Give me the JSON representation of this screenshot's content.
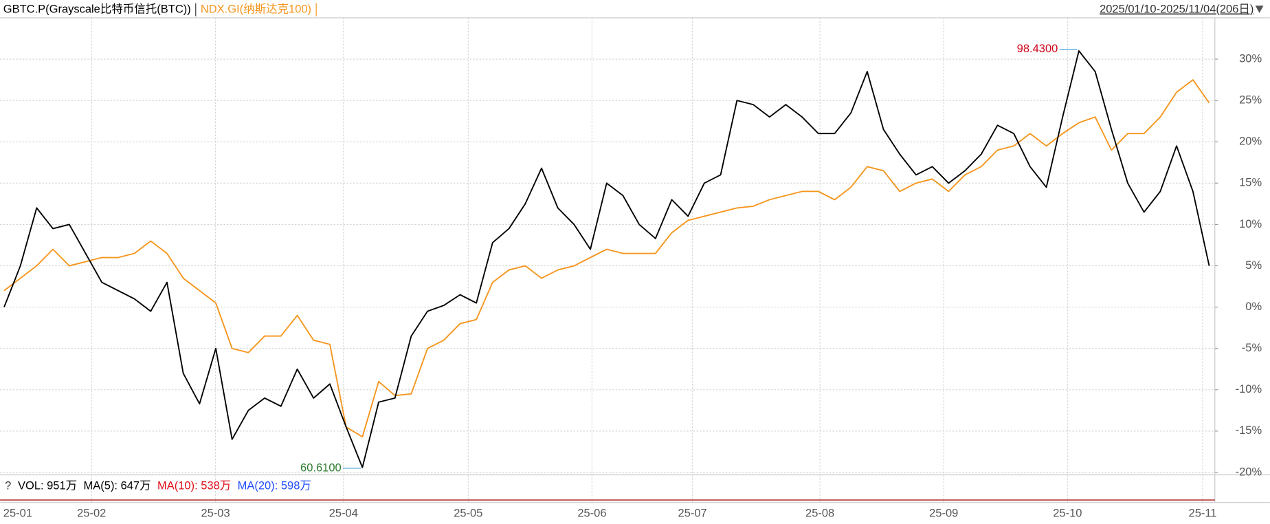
{
  "chart_data": {
    "type": "line",
    "range_label": "2025/01/10-2025/11/04(206日)",
    "series": [
      {
        "name": "GBTC.P(Grayscale比特币信托(BTC))",
        "color": "#000000",
        "values": [
          0,
          5,
          12,
          9.5,
          10,
          6.5,
          3,
          2,
          1,
          -0.5,
          3,
          -8,
          -11.7,
          -5,
          -16,
          -12.5,
          -11,
          -12,
          -7.5,
          -11,
          -9.3,
          -14.5,
          -19.4,
          -11.5,
          -11,
          -3.5,
          -0.5,
          0.2,
          1.5,
          0.5,
          7.8,
          9.5,
          12.5,
          16.8,
          12,
          10,
          7,
          15,
          13.5,
          10,
          8.3,
          13,
          11,
          15,
          16,
          25,
          24.5,
          23,
          24.5,
          23,
          21,
          21,
          23.5,
          28.5,
          21.5,
          18.5,
          16,
          17,
          15,
          16.5,
          18.5,
          22,
          21,
          17,
          14.5,
          23,
          31,
          28.5,
          21.5,
          15,
          11.5,
          14,
          19.5,
          14,
          5
        ]
      },
      {
        "name": "NDX.GI(纳斯达克100)",
        "color": "#f5961e",
        "values": [
          2,
          3.5,
          5,
          7,
          5,
          5.5,
          6,
          6,
          6.5,
          8,
          6.5,
          3.5,
          2,
          0.5,
          -5,
          -5.5,
          -3.5,
          -3.5,
          -1,
          -4,
          -4.5,
          -14.5,
          -15.7,
          -9,
          -10.7,
          -10.5,
          -5,
          -4,
          -2,
          -1.5,
          3,
          4.5,
          5,
          3.5,
          4.5,
          5,
          6,
          7,
          6.5,
          6.5,
          6.5,
          9,
          10.5,
          11,
          11.5,
          12,
          12.2,
          13,
          13.5,
          14,
          14,
          13,
          14.5,
          17,
          16.5,
          14,
          15,
          15.5,
          14,
          16,
          17,
          19,
          19.5,
          21,
          19.5,
          21,
          22.3,
          23,
          19,
          21,
          21,
          23,
          26,
          27.5,
          24.7
        ]
      }
    ],
    "annotations": {
      "max": "98.4300",
      "min": "60.6100",
      "max_color": "#d0021b",
      "min_color": "#2e7d32"
    },
    "xlim": [
      -0.25,
      74.35
    ],
    "xticks": [
      {
        "value": 0,
        "label": "25-01"
      },
      {
        "value": 5.37,
        "label": "25-02"
      },
      {
        "value": 12.98,
        "label": "25-03"
      },
      {
        "value": 20.84,
        "label": "25-04"
      },
      {
        "value": 28.5,
        "label": "25-05"
      },
      {
        "value": 36.1,
        "label": "25-06"
      },
      {
        "value": 42.27,
        "label": "25-07"
      },
      {
        "value": 50.1,
        "label": "25-08"
      },
      {
        "value": 57.7,
        "label": "25-09"
      },
      {
        "value": 65.3,
        "label": "25-10"
      },
      {
        "value": 73.6,
        "label": "25-11"
      }
    ],
    "ylim": [
      -20.3,
      35
    ],
    "yticks": [
      {
        "value": 30,
        "label": "30%"
      },
      {
        "value": 25,
        "label": "25%"
      },
      {
        "value": 20,
        "label": "20%"
      },
      {
        "value": 15,
        "label": "15%"
      },
      {
        "value": 10,
        "label": "10%"
      },
      {
        "value": 5,
        "label": "5%"
      },
      {
        "value": 0,
        "label": "0%"
      },
      {
        "value": -5,
        "label": "-5%"
      },
      {
        "value": -10,
        "label": "-10%"
      },
      {
        "value": -15,
        "label": "-15%"
      },
      {
        "value": -20,
        "label": "-20%"
      }
    ],
    "grid": true,
    "volume_panel": {
      "help": "?",
      "items": [
        {
          "text": "VOL: 951万",
          "color": "#000000"
        },
        {
          "text": "MA(5): 647万",
          "color": "#000000"
        },
        {
          "text": "MA(10): 538万",
          "color": "#e0101a"
        },
        {
          "text": "MA(20): 598万",
          "color": "#1f4cff"
        }
      ]
    }
  }
}
